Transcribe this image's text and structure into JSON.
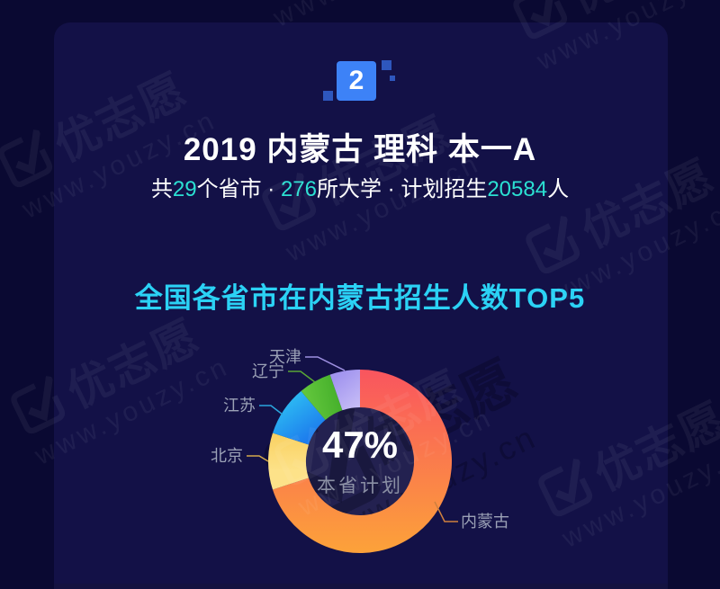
{
  "badge": {
    "number": "2"
  },
  "header": {
    "title": "2019 内蒙古 理科 本一A",
    "subtitle": {
      "prefix": "共",
      "province_count": "29",
      "mid1": "个省市 · ",
      "university_count": "276",
      "mid2": "所大学 · 计划招生",
      "student_count": "20584",
      "suffix": "人"
    }
  },
  "section": {
    "heading": "全国各省市在内蒙古招生人数TOP5"
  },
  "chart_data": {
    "type": "pie",
    "subtype": "donut",
    "title": "全国各省市在内蒙古招生人数TOP5",
    "center_value": "47%",
    "center_label": "本省计划",
    "order": "clockwise-from-top",
    "label_color": "#9ba1b6",
    "series": [
      {
        "name": "内蒙古",
        "share_pct": 70.0,
        "colors": [
          "#f9545f",
          "#fca13a"
        ],
        "line_color": "#cf803e"
      },
      {
        "name": "北京",
        "share_pct": 10.0,
        "colors": [
          "#f6c342",
          "#fde289"
        ],
        "line_color": "#d3a94c"
      },
      {
        "name": "江苏",
        "share_pct": 8.9,
        "colors": [
          "#30c9f4",
          "#1d7ced"
        ],
        "line_color": "#2aa6dd"
      },
      {
        "name": "辽宁",
        "share_pct": 5.8,
        "colors": [
          "#62c63c",
          "#2f9e1e"
        ],
        "line_color": "#5aa636"
      },
      {
        "name": "天津",
        "share_pct": 5.3,
        "colors": [
          "#a295ef",
          "#d8d0fa"
        ],
        "line_color": "#9d8fe0"
      }
    ]
  },
  "watermark": {
    "brand": "优志愿",
    "url": "www.youzy.cn"
  },
  "colors": {
    "outer_bg": "#0a0932",
    "card_bg": "#131147",
    "hole_bg": "#232150",
    "badge_blue": "#3d82f7",
    "decor_blue": "#2e57bd",
    "accent_cyan": "#2be0d2",
    "heading_cyan": "#2bd2f5",
    "bottom_strip": "#141240"
  }
}
